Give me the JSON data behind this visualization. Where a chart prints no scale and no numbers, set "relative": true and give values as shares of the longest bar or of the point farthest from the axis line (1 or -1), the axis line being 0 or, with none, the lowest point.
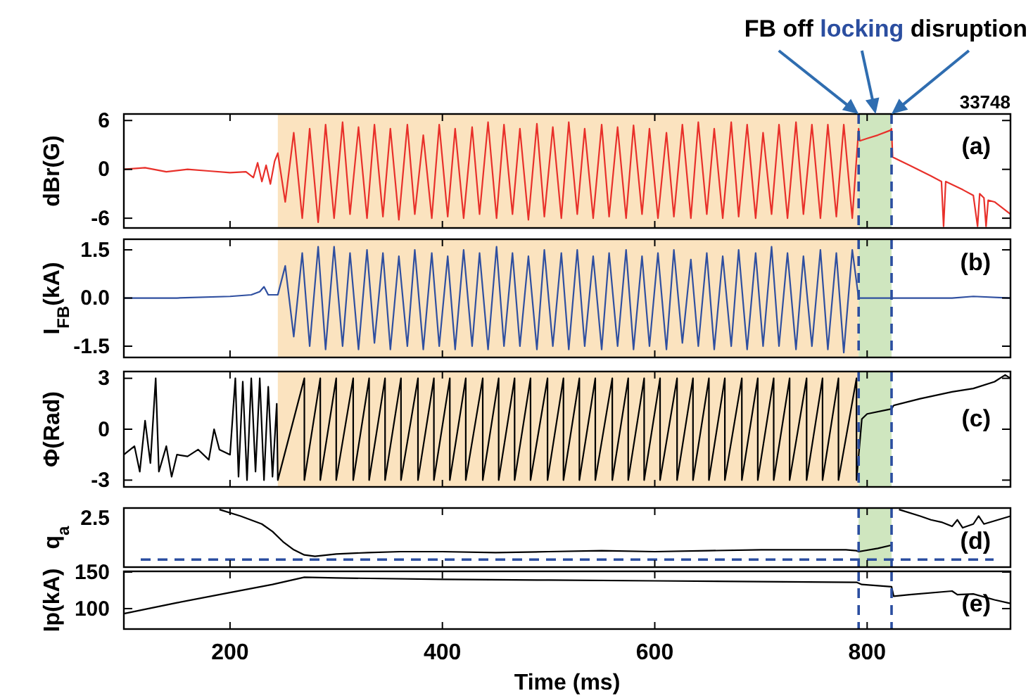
{
  "chart_data": [
    {
      "type": "line",
      "ylabel": "dBr(G)",
      "subtitle": "33748",
      "xlim": [
        100,
        935
      ],
      "xticks": [
        200,
        400,
        600,
        800
      ],
      "ylim": [
        -7.2,
        6.8
      ],
      "yticks": [
        6,
        0,
        -6
      ],
      "tick_labels": "y",
      "line_style": "solid",
      "series": [
        {
          "color": "#e8302a",
          "x": [
            100,
            120,
            140,
            160,
            180,
            200,
            215,
            222,
            226,
            230,
            234,
            238,
            242,
            245,
            252,
            260,
            268,
            275,
            283,
            290,
            298,
            306,
            313,
            321,
            329,
            336,
            344,
            351,
            359,
            367,
            374,
            382,
            390,
            397,
            405,
            412,
            420,
            428,
            435,
            443,
            451,
            458,
            466,
            473,
            481,
            489,
            496,
            504,
            512,
            519,
            527,
            534,
            542,
            550,
            557,
            565,
            573,
            580,
            588,
            595,
            603,
            611,
            618,
            626,
            634,
            641,
            649,
            656,
            664,
            672,
            679,
            687,
            695,
            702,
            710,
            717,
            725,
            733,
            740,
            748,
            756,
            763,
            771,
            778,
            786,
            792,
            793,
            800,
            810,
            822,
            823,
            824,
            840,
            860,
            870,
            872,
            874,
            890,
            900,
            904,
            906,
            910,
            912,
            914,
            920,
            935
          ],
          "values": [
            0,
            0.2,
            -0.3,
            0,
            -0.2,
            -0.4,
            -0.3,
            -1,
            0.8,
            -1.5,
            0.5,
            -1.8,
            1,
            2,
            -4,
            4.5,
            -6,
            5,
            -6.5,
            5.5,
            -6,
            5.8,
            -5.5,
            5.2,
            -6,
            5.5,
            -5.8,
            5,
            -6.2,
            5.5,
            -5.5,
            4.2,
            -6,
            5.5,
            -5.8,
            5,
            -6,
            5.2,
            -5.5,
            5.8,
            -6,
            5.5,
            -5.5,
            5,
            -6.2,
            5.6,
            -5.8,
            5.2,
            -6,
            5.8,
            -5.5,
            5,
            -6,
            5.5,
            -5.8,
            5.2,
            -6,
            5.4,
            -5.5,
            5,
            -6,
            4.5,
            -5.8,
            5.5,
            -6,
            5.8,
            -5.5,
            5,
            -6,
            5.8,
            -5.8,
            5.5,
            -6,
            4.5,
            -5.5,
            5.5,
            -6,
            5.8,
            -5.5,
            5.5,
            -6,
            5.5,
            -5.8,
            5.5,
            -6,
            5,
            3.5,
            3.8,
            4.2,
            4.8,
            5,
            1.5,
            0.5,
            -0.8,
            -1.5,
            -7,
            -1.5,
            -2.5,
            -3.2,
            -7,
            -3,
            -3.5,
            -7,
            -3.8,
            -4,
            -5.5
          ]
        }
      ],
      "bands": [
        {
          "axis": "x",
          "from": 245,
          "to": 792,
          "color": "#fbe3bf"
        },
        {
          "axis": "x",
          "from": 792,
          "to": 823,
          "color": "#cfe6bf"
        }
      ],
      "ref_lines": [
        {
          "axis": "x",
          "value": 792,
          "color": "#2b4ea0",
          "line_style": "dashed"
        },
        {
          "axis": "x",
          "value": 823,
          "color": "#2b4ea0",
          "line_style": "dashed"
        }
      ],
      "annotations": [
        {
          "text": "FB off",
          "x": 792,
          "y": 6.8
        },
        {
          "text": "locking",
          "x": 808,
          "y": 6.8
        },
        {
          "text": "disruption",
          "x": 823,
          "y": 6.8
        },
        "(a)"
      ]
    },
    {
      "type": "line",
      "ylabel": "I$_{FB}$(kA)",
      "xlim": [
        100,
        935
      ],
      "xticks": [
        200,
        400,
        600,
        800
      ],
      "ylim": [
        -1.85,
        1.83
      ],
      "yticks": [
        {
          "value": 1.5,
          "label": "1.5"
        },
        {
          "value": 0,
          "label": "0.0"
        },
        {
          "value": -1.5,
          "label": "-1.5"
        }
      ],
      "tick_labels": "y",
      "line_style": "solid",
      "series": [
        {
          "color": "#2f4fa0",
          "x": [
            100,
            150,
            200,
            220,
            228,
            232,
            236,
            240,
            245,
            252,
            260,
            268,
            275,
            283,
            290,
            298,
            306,
            313,
            321,
            329,
            336,
            344,
            351,
            359,
            367,
            374,
            382,
            390,
            397,
            405,
            412,
            420,
            428,
            435,
            443,
            451,
            458,
            466,
            473,
            481,
            489,
            496,
            504,
            512,
            519,
            527,
            534,
            542,
            550,
            557,
            565,
            573,
            580,
            588,
            595,
            603,
            611,
            618,
            626,
            634,
            641,
            649,
            656,
            664,
            672,
            679,
            687,
            695,
            702,
            710,
            717,
            725,
            733,
            740,
            748,
            756,
            763,
            771,
            778,
            786,
            792,
            795,
            823,
            850,
            880,
            900,
            935
          ],
          "values": [
            0,
            0,
            0.05,
            0.1,
            0.2,
            0.35,
            0.1,
            0.1,
            0.1,
            1,
            -1.2,
            1.4,
            -1.5,
            1.6,
            -1.6,
            1.6,
            -1.5,
            1.4,
            -1.6,
            1.5,
            -1.4,
            1.4,
            -1.6,
            1.3,
            -1.5,
            1.5,
            -1.6,
            1.4,
            -1.5,
            1.3,
            -1.6,
            1.5,
            -1.5,
            1.4,
            -1.6,
            1.6,
            -1.5,
            1.4,
            -1.5,
            1.3,
            -1.6,
            1.5,
            -1.5,
            1.4,
            -1.6,
            1.5,
            -1.5,
            1.3,
            -1.6,
            1.4,
            -1.5,
            1.5,
            -1.6,
            1.3,
            -1.5,
            1.4,
            -1.6,
            1.5,
            -1.4,
            1.2,
            -1.5,
            1.4,
            -1.6,
            1.3,
            -1.5,
            1.5,
            -1.6,
            1.4,
            -1.5,
            1.6,
            -1.5,
            1.4,
            -1.6,
            1.3,
            -1.5,
            1.5,
            -1.6,
            1.4,
            -1.7,
            1.5,
            0,
            0,
            0,
            0,
            0,
            0.05,
            0
          ]
        }
      ],
      "bands": [
        {
          "axis": "x",
          "from": 245,
          "to": 792,
          "color": "#fbe3bf"
        },
        {
          "axis": "x",
          "from": 792,
          "to": 823,
          "color": "#cfe6bf"
        }
      ],
      "ref_lines": [
        {
          "axis": "x",
          "value": 792,
          "color": "#2b4ea0",
          "line_style": "dashed"
        },
        {
          "axis": "x",
          "value": 823,
          "color": "#2b4ea0",
          "line_style": "dashed"
        }
      ],
      "annotations": [
        "(b)"
      ]
    },
    {
      "type": "line",
      "ylabel": "Φ(Rad)",
      "xlim": [
        100,
        935
      ],
      "xticks": [
        200,
        400,
        600,
        800
      ],
      "ylim": [
        -3.4,
        3.4
      ],
      "yticks": [
        3,
        0,
        -3
      ],
      "tick_labels": "y",
      "line_style": "solid",
      "series": [
        {
          "color": "#000000",
          "x": [
            100,
            110,
            115,
            120,
            125,
            130,
            133,
            140,
            145,
            150,
            160,
            170,
            180,
            185,
            190,
            200,
            205,
            208,
            212,
            216,
            220,
            224,
            228,
            232,
            236,
            240,
            244,
            245,
            270,
            270,
            285,
            285,
            300,
            300,
            316,
            316,
            331,
            331,
            346,
            346,
            361,
            361,
            377,
            377,
            392,
            392,
            407,
            407,
            422,
            422,
            438,
            438,
            453,
            453,
            468,
            468,
            483,
            483,
            499,
            499,
            514,
            514,
            529,
            529,
            544,
            544,
            560,
            560,
            575,
            575,
            590,
            590,
            605,
            605,
            621,
            621,
            636,
            636,
            651,
            651,
            666,
            666,
            682,
            682,
            697,
            697,
            712,
            712,
            727,
            727,
            743,
            743,
            758,
            758,
            773,
            773,
            790,
            790,
            795,
            800,
            823,
            825,
            850,
            880,
            900,
            920,
            930,
            935
          ],
          "values": [
            -1.5,
            -1,
            -2.5,
            0.5,
            -2,
            3,
            -2.5,
            -1,
            -2.8,
            -1.5,
            -1.6,
            -1.2,
            -1.8,
            0,
            -1.2,
            -1.5,
            3,
            -2.8,
            2.8,
            -3,
            3,
            -2.5,
            3,
            -3,
            2.5,
            -2.8,
            1.5,
            -3,
            3,
            -3,
            3,
            -3,
            3,
            -3,
            3,
            -3,
            3,
            -3,
            3,
            -3,
            3,
            -3,
            3,
            -3,
            3,
            -3,
            3,
            -3,
            3,
            -3,
            3,
            -3,
            3,
            -3,
            3,
            -3,
            3,
            -3,
            3,
            -3,
            3,
            -3,
            3,
            -3,
            3,
            -3,
            3,
            -3,
            3,
            -3,
            3,
            -3,
            3,
            -3,
            3,
            -3,
            3,
            -3,
            3,
            -3,
            3,
            -3,
            3,
            -3,
            3,
            -3,
            3,
            -3,
            3,
            -3,
            3,
            -3,
            3,
            -3,
            3,
            -3,
            3,
            -3,
            0.6,
            0.9,
            1.2,
            1.4,
            1.8,
            2.2,
            2.4,
            2.8,
            3.2,
            3
          ]
        }
      ],
      "bands": [
        {
          "axis": "x",
          "from": 245,
          "to": 792,
          "color": "#fbe3bf"
        },
        {
          "axis": "x",
          "from": 792,
          "to": 823,
          "color": "#cfe6bf"
        }
      ],
      "ref_lines": [
        {
          "axis": "x",
          "value": 792,
          "color": "#2b4ea0",
          "line_style": "dashed"
        },
        {
          "axis": "x",
          "value": 823,
          "color": "#2b4ea0",
          "line_style": "dashed"
        }
      ],
      "annotations": [
        "(c)"
      ]
    },
    {
      "type": "line",
      "ylabel": "q$_{a}$",
      "xlim": [
        100,
        935
      ],
      "xticks": [
        200,
        400,
        600,
        800
      ],
      "relative": true,
      "tick_labels": "y",
      "line_style": "solid",
      "series": [
        {
          "color": "#000000",
          "x": [
            190,
            210,
            230,
            240,
            250,
            260,
            270,
            280,
            300,
            330,
            360,
            400,
            450,
            500,
            550,
            600,
            650,
            700,
            750,
            780,
            790,
            792,
            810,
            823,
            825,
            830,
            850,
            860,
            870,
            880,
            885,
            890,
            900,
            905,
            910,
            935
          ],
          "values": [
            1,
            0.86,
            0.69,
            0.53,
            0.31,
            0.14,
            0.03,
            0,
            0.05,
            0.08,
            0.1,
            0.1,
            0.08,
            0.1,
            0.12,
            0.1,
            0.12,
            0.14,
            0.14,
            0.14,
            0.12,
            0.1,
            0.17,
            0.24,
            null,
            1,
            0.86,
            0.78,
            0.73,
            0.64,
            0.78,
            0.61,
            0.69,
            0.86,
            0.69,
            0.86
          ]
        }
      ],
      "bands": [
        {
          "axis": "x",
          "from": 792,
          "to": 823,
          "color": "#cfe6bf"
        }
      ],
      "ref_lines": [
        {
          "axis": "x",
          "value": 792,
          "color": "#2b4ea0",
          "line_style": "dashed"
        },
        {
          "axis": "x",
          "value": 823,
          "color": "#2b4ea0",
          "line_style": "dashed"
        },
        {
          "axis": "y",
          "value": -0.07,
          "color": "#2b4ea0",
          "line_style": "dashed"
        }
      ],
      "annotations": [
        "2.5",
        "(d)"
      ]
    },
    {
      "type": "line",
      "ylabel": "Ip(kA)",
      "xlabel": "Time (ms)",
      "xlim": [
        100,
        935
      ],
      "xticks": [
        200,
        400,
        600,
        800
      ],
      "ylim": [
        72,
        151
      ],
      "yticks": [
        150,
        100
      ],
      "line_style": "solid",
      "series": [
        {
          "color": "#000000",
          "x": [
            100,
            150,
            200,
            240,
            270,
            300,
            400,
            500,
            600,
            700,
            790,
            795,
            823,
            825,
            840,
            880,
            885,
            900,
            920,
            935
          ],
          "values": [
            93,
            108,
            122,
            133,
            143,
            142,
            140,
            139,
            138,
            137,
            136,
            133,
            130,
            117,
            119,
            124,
            119,
            120,
            112,
            107
          ]
        }
      ],
      "ref_lines": [
        {
          "axis": "x",
          "value": 792,
          "color": "#2b4ea0",
          "line_style": "dashed"
        },
        {
          "axis": "x",
          "value": 823,
          "color": "#2b4ea0",
          "line_style": "dashed"
        }
      ],
      "annotations": [
        "(e)"
      ]
    }
  ]
}
